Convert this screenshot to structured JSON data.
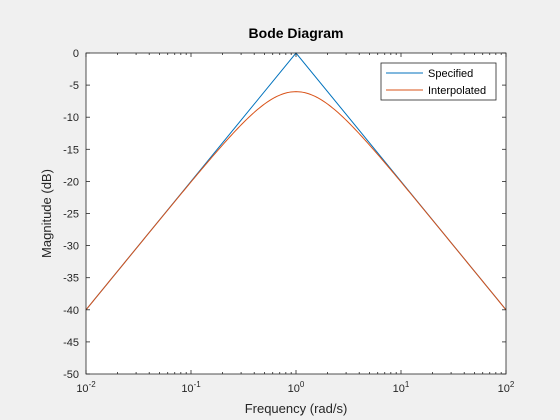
{
  "chart_data": {
    "type": "line",
    "title": "Bode Diagram",
    "xlabel": "Frequency  (rad/s)",
    "ylabel": "Magnitude (dB)",
    "xscale": "log",
    "xlim": [
      0.01,
      100
    ],
    "ylim": [
      -50,
      0
    ],
    "x_ticks": [
      {
        "value": 0.01,
        "base": "10",
        "exp": "-2"
      },
      {
        "value": 0.1,
        "base": "10",
        "exp": "-1"
      },
      {
        "value": 1,
        "base": "10",
        "exp": "0"
      },
      {
        "value": 10,
        "base": "10",
        "exp": "1"
      },
      {
        "value": 100,
        "base": "10",
        "exp": "2"
      }
    ],
    "y_ticks": [
      0,
      -5,
      -10,
      -15,
      -20,
      -25,
      -30,
      -35,
      -40,
      -45,
      -50
    ],
    "grid": false,
    "legend_position": "top-right",
    "series": [
      {
        "name": "Specified",
        "color": "#0072bd",
        "x": [
          0.01,
          1,
          100
        ],
        "y": [
          -40,
          0,
          -40
        ]
      },
      {
        "name": "Interpolated",
        "color": "#d95319",
        "x": [
          0.01,
          0.02,
          0.05,
          0.1,
          0.2,
          0.3,
          0.5,
          0.7,
          1,
          1.43,
          2,
          3.33,
          5,
          10,
          20,
          50,
          100
        ],
        "y": [
          -40,
          -34,
          -26,
          -20.04,
          -14.15,
          -10.79,
          -7.96,
          -6.61,
          -6.02,
          -6.61,
          -7.96,
          -10.79,
          -14.15,
          -20.04,
          -26.02,
          -33.98,
          -40
        ]
      }
    ]
  }
}
